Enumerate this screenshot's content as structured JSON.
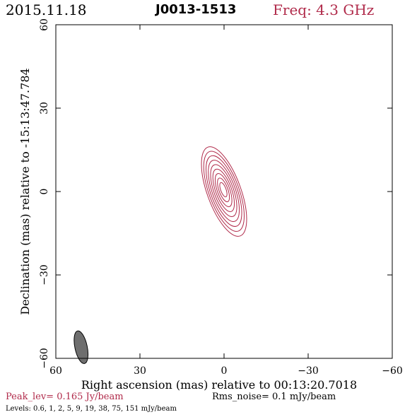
{
  "header": {
    "date": "2015.11.18",
    "source": "J0013-1513",
    "frequency": "Freq: 4.3 GHz"
  },
  "colors": {
    "contour": "#b02a4a",
    "beam_fill": "#6e6e6e",
    "frame": "#000000"
  },
  "chart_data": {
    "type": "contour",
    "xlabel": "Right ascension (mas) relative to 00:13:20.7018",
    "ylabel": "Declination (mas) relative to -15:13:47.784",
    "xlim": [
      60,
      -60
    ],
    "ylim": [
      -60,
      60
    ],
    "x_ticks": [
      60,
      30,
      0,
      -30,
      -60
    ],
    "y_ticks": [
      60,
      30,
      0,
      -30,
      -60
    ],
    "x_tick_labels": [
      "60",
      "30",
      "0",
      "−30",
      "−60"
    ],
    "y_tick_labels": [
      "60",
      "30",
      "0",
      "−30",
      "−60"
    ],
    "source_component": {
      "center_ra": 0,
      "center_dec": 0,
      "contour_levels": [
        0.6,
        1,
        2,
        5,
        9,
        19,
        38,
        75,
        151
      ],
      "contour_units": "mJy/beam",
      "outer_major_axis_mas": 17,
      "outer_minor_axis_mas": 6,
      "position_angle_deg": -20
    },
    "beam": {
      "center_ra": 51,
      "center_dec": -56,
      "major_axis_mas": 6.0,
      "minor_axis_mas": 2.2,
      "position_angle_deg": -12
    },
    "peak_level": "Peak_lev=  0.165 Jy/beam",
    "rms_noise": "Rms_noise=  0.1 mJy/beam",
    "levels_text": "Levels: 0.6,   1,   2,   5,   9,  19,  38,  75, 151 mJy/beam"
  }
}
